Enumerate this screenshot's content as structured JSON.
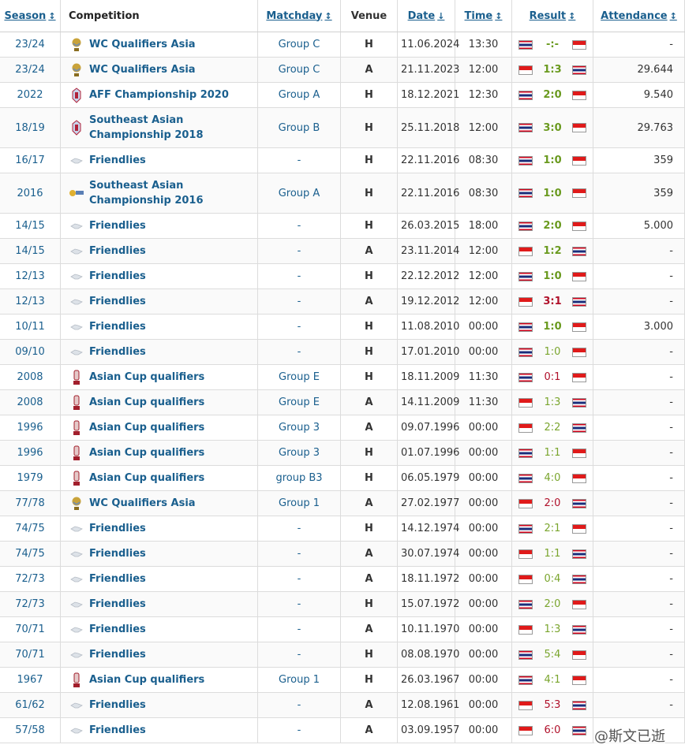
{
  "headers": {
    "season": "Season",
    "competition": "Competition",
    "matchday": "Matchday",
    "venue": "Venue",
    "date": "Date",
    "time": "Time",
    "result": "Result",
    "attendance": "Attendance",
    "sort_both": "↕",
    "sort_down": "↓"
  },
  "colors": {
    "win": "#6a9a1f",
    "loss": "#b0102a",
    "draw": "#6a9a1f",
    "link": "#1a5f8e"
  },
  "rows": [
    {
      "season": "23/24",
      "competition": "WC Qualifiers Asia",
      "logo": "wc-trophy-icon",
      "matchday": "Group C",
      "venue": "H",
      "date": "11.06.2024",
      "time": "13:30",
      "home_flag": "th",
      "away_flag": "id",
      "score": "-:-",
      "outcome": "none",
      "attendance": "-"
    },
    {
      "season": "23/24",
      "competition": "WC Qualifiers Asia",
      "logo": "wc-trophy-icon",
      "matchday": "Group C",
      "venue": "A",
      "date": "21.11.2023",
      "time": "12:00",
      "home_flag": "id",
      "away_flag": "th",
      "score": "1:3",
      "outcome": "win",
      "attendance": "29.644"
    },
    {
      "season": "2022",
      "competition": "AFF Championship 2020",
      "logo": "aff-logo-icon",
      "matchday": "Group A",
      "venue": "H",
      "date": "18.12.2021",
      "time": "12:30",
      "home_flag": "th",
      "away_flag": "id",
      "score": "2:0",
      "outcome": "win",
      "attendance": "9.540"
    },
    {
      "season": "18/19",
      "competition": "Southeast Asian Championship 2018",
      "logo": "aff-logo-icon",
      "matchday": "Group B",
      "venue": "H",
      "date": "25.11.2018",
      "time": "12:00",
      "home_flag": "th",
      "away_flag": "id",
      "score": "3:0",
      "outcome": "win",
      "attendance": "29.763",
      "tall": true
    },
    {
      "season": "16/17",
      "competition": "Friendlies",
      "logo": "friendly-icon",
      "matchday": "-",
      "venue": "H",
      "date": "22.11.2016",
      "time": "08:30",
      "home_flag": "th",
      "away_flag": "id",
      "score": "1:0",
      "outcome": "win",
      "attendance": "359"
    },
    {
      "season": "2016",
      "competition": "Southeast Asian Championship 2016",
      "logo": "aff-suzuki-icon",
      "matchday": "Group A",
      "venue": "H",
      "date": "22.11.2016",
      "time": "08:30",
      "home_flag": "th",
      "away_flag": "id",
      "score": "1:0",
      "outcome": "win",
      "attendance": "359",
      "tall": true
    },
    {
      "season": "14/15",
      "competition": "Friendlies",
      "logo": "friendly-icon",
      "matchday": "-",
      "venue": "H",
      "date": "26.03.2015",
      "time": "18:00",
      "home_flag": "th",
      "away_flag": "id",
      "score": "2:0",
      "outcome": "win",
      "attendance": "5.000"
    },
    {
      "season": "14/15",
      "competition": "Friendlies",
      "logo": "friendly-icon",
      "matchday": "-",
      "venue": "A",
      "date": "23.11.2014",
      "time": "12:00",
      "home_flag": "id",
      "away_flag": "th",
      "score": "1:2",
      "outcome": "win",
      "attendance": "-"
    },
    {
      "season": "12/13",
      "competition": "Friendlies",
      "logo": "friendly-icon",
      "matchday": "-",
      "venue": "H",
      "date": "22.12.2012",
      "time": "12:00",
      "home_flag": "th",
      "away_flag": "id",
      "score": "1:0",
      "outcome": "win",
      "attendance": "-"
    },
    {
      "season": "12/13",
      "competition": "Friendlies",
      "logo": "friendly-icon",
      "matchday": "-",
      "venue": "A",
      "date": "19.12.2012",
      "time": "12:00",
      "home_flag": "id",
      "away_flag": "th",
      "score": "3:1",
      "outcome": "loss",
      "attendance": "-"
    },
    {
      "season": "10/11",
      "competition": "Friendlies",
      "logo": "friendly-icon",
      "matchday": "-",
      "venue": "H",
      "date": "11.08.2010",
      "time": "00:00",
      "home_flag": "th",
      "away_flag": "id",
      "score": "1:0",
      "outcome": "win",
      "attendance": "3.000"
    },
    {
      "season": "09/10",
      "competition": "Friendlies",
      "logo": "friendly-icon",
      "matchday": "-",
      "venue": "H",
      "date": "17.01.2010",
      "time": "00:00",
      "home_flag": "th",
      "away_flag": "id",
      "score": "1:0",
      "outcome": "win-light",
      "attendance": "-"
    },
    {
      "season": "2008",
      "competition": "Asian Cup qualifiers",
      "logo": "asian-cup-icon",
      "matchday": "Group E",
      "venue": "H",
      "date": "18.11.2009",
      "time": "11:30",
      "home_flag": "th",
      "away_flag": "id",
      "score": "0:1",
      "outcome": "loss-light",
      "attendance": "-"
    },
    {
      "season": "2008",
      "competition": "Asian Cup qualifiers",
      "logo": "asian-cup-icon",
      "matchday": "Group E",
      "venue": "A",
      "date": "14.11.2009",
      "time": "11:30",
      "home_flag": "id",
      "away_flag": "th",
      "score": "1:3",
      "outcome": "win-light",
      "attendance": "-"
    },
    {
      "season": "1996",
      "competition": "Asian Cup qualifiers",
      "logo": "asian-cup-icon",
      "matchday": "Group 3",
      "venue": "A",
      "date": "09.07.1996",
      "time": "00:00",
      "home_flag": "id",
      "away_flag": "th",
      "score": "2:2",
      "outcome": "win-light",
      "attendance": "-"
    },
    {
      "season": "1996",
      "competition": "Asian Cup qualifiers",
      "logo": "asian-cup-icon",
      "matchday": "Group 3",
      "venue": "H",
      "date": "01.07.1996",
      "time": "00:00",
      "home_flag": "th",
      "away_flag": "id",
      "score": "1:1",
      "outcome": "win-light",
      "attendance": "-"
    },
    {
      "season": "1979",
      "competition": "Asian Cup qualifiers",
      "logo": "asian-cup-icon",
      "matchday": "group B3",
      "venue": "H",
      "date": "06.05.1979",
      "time": "00:00",
      "home_flag": "th",
      "away_flag": "id",
      "score": "4:0",
      "outcome": "win-light",
      "attendance": "-"
    },
    {
      "season": "77/78",
      "competition": "WC Qualifiers Asia",
      "logo": "wc-trophy-icon",
      "matchday": "Group 1",
      "venue": "A",
      "date": "27.02.1977",
      "time": "00:00",
      "home_flag": "id",
      "away_flag": "th",
      "score": "2:0",
      "outcome": "loss-light",
      "attendance": "-"
    },
    {
      "season": "74/75",
      "competition": "Friendlies",
      "logo": "friendly-icon",
      "matchday": "-",
      "venue": "H",
      "date": "14.12.1974",
      "time": "00:00",
      "home_flag": "th",
      "away_flag": "id",
      "score": "2:1",
      "outcome": "win-light",
      "attendance": "-"
    },
    {
      "season": "74/75",
      "competition": "Friendlies",
      "logo": "friendly-icon",
      "matchday": "-",
      "venue": "A",
      "date": "30.07.1974",
      "time": "00:00",
      "home_flag": "id",
      "away_flag": "th",
      "score": "1:1",
      "outcome": "win-light",
      "attendance": "-"
    },
    {
      "season": "72/73",
      "competition": "Friendlies",
      "logo": "friendly-icon",
      "matchday": "-",
      "venue": "A",
      "date": "18.11.1972",
      "time": "00:00",
      "home_flag": "id",
      "away_flag": "th",
      "score": "0:4",
      "outcome": "win-light",
      "attendance": "-"
    },
    {
      "season": "72/73",
      "competition": "Friendlies",
      "logo": "friendly-icon",
      "matchday": "-",
      "venue": "H",
      "date": "15.07.1972",
      "time": "00:00",
      "home_flag": "th",
      "away_flag": "id",
      "score": "2:0",
      "outcome": "win-light",
      "attendance": "-"
    },
    {
      "season": "70/71",
      "competition": "Friendlies",
      "logo": "friendly-icon",
      "matchday": "-",
      "venue": "A",
      "date": "10.11.1970",
      "time": "00:00",
      "home_flag": "id",
      "away_flag": "th",
      "score": "1:3",
      "outcome": "win-light",
      "attendance": "-"
    },
    {
      "season": "70/71",
      "competition": "Friendlies",
      "logo": "friendly-icon",
      "matchday": "-",
      "venue": "H",
      "date": "08.08.1970",
      "time": "00:00",
      "home_flag": "th",
      "away_flag": "id",
      "score": "5:4",
      "outcome": "win-light",
      "attendance": "-"
    },
    {
      "season": "1967",
      "competition": "Asian Cup qualifiers",
      "logo": "asian-cup-icon",
      "matchday": "Group 1",
      "venue": "H",
      "date": "26.03.1967",
      "time": "00:00",
      "home_flag": "th",
      "away_flag": "id",
      "score": "4:1",
      "outcome": "win-light",
      "attendance": "-"
    },
    {
      "season": "61/62",
      "competition": "Friendlies",
      "logo": "friendly-icon",
      "matchday": "-",
      "venue": "A",
      "date": "12.08.1961",
      "time": "00:00",
      "home_flag": "id",
      "away_flag": "th",
      "score": "5:3",
      "outcome": "loss-light",
      "attendance": "-"
    },
    {
      "season": "57/58",
      "competition": "Friendlies",
      "logo": "friendly-icon",
      "matchday": "-",
      "venue": "A",
      "date": "03.09.1957",
      "time": "00:00",
      "home_flag": "id",
      "away_flag": "th",
      "score": "6:0",
      "outcome": "loss-light",
      "attendance": ""
    }
  ],
  "watermark": "@斯文已逝"
}
